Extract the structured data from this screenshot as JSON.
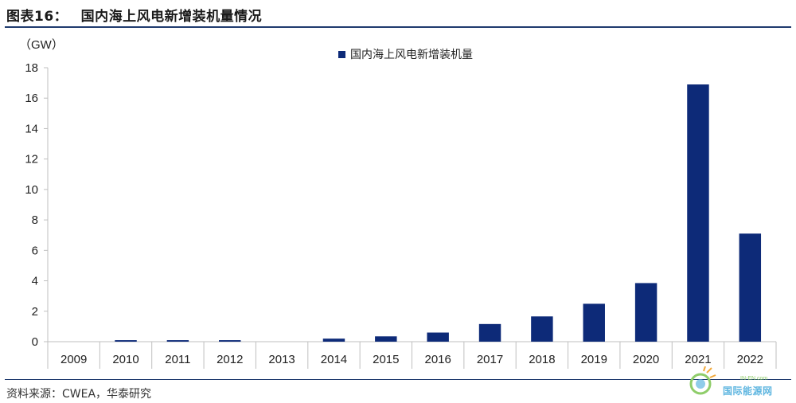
{
  "figure": {
    "label": "图表16：",
    "title": "国内海上风电新增装机量情况",
    "source": "资料来源：CWEA，华泰研究",
    "watermark_text": "国际能源网",
    "watermark_sub": "IN-EN.com"
  },
  "colors": {
    "bar": "#0d2a78",
    "axis": "#bfbfbf",
    "rule": "#1f3a6e"
  },
  "chart_data": {
    "type": "bar",
    "unit_label": "（GW）",
    "categories": [
      "2009",
      "2010",
      "2011",
      "2012",
      "2013",
      "2014",
      "2015",
      "2016",
      "2017",
      "2018",
      "2019",
      "2020",
      "2021",
      "2022"
    ],
    "series": [
      {
        "name": "国内海上风电新增装机量",
        "values": [
          0,
          0.1,
          0.1,
          0.1,
          0,
          0.2,
          0.35,
          0.6,
          1.16,
          1.66,
          2.49,
          3.85,
          16.9,
          7.1
        ]
      }
    ],
    "ylim": [
      0,
      18
    ],
    "yticks": [
      0,
      2,
      4,
      6,
      8,
      10,
      12,
      14,
      16,
      18
    ],
    "grid": false,
    "legend_position": "top-center"
  }
}
